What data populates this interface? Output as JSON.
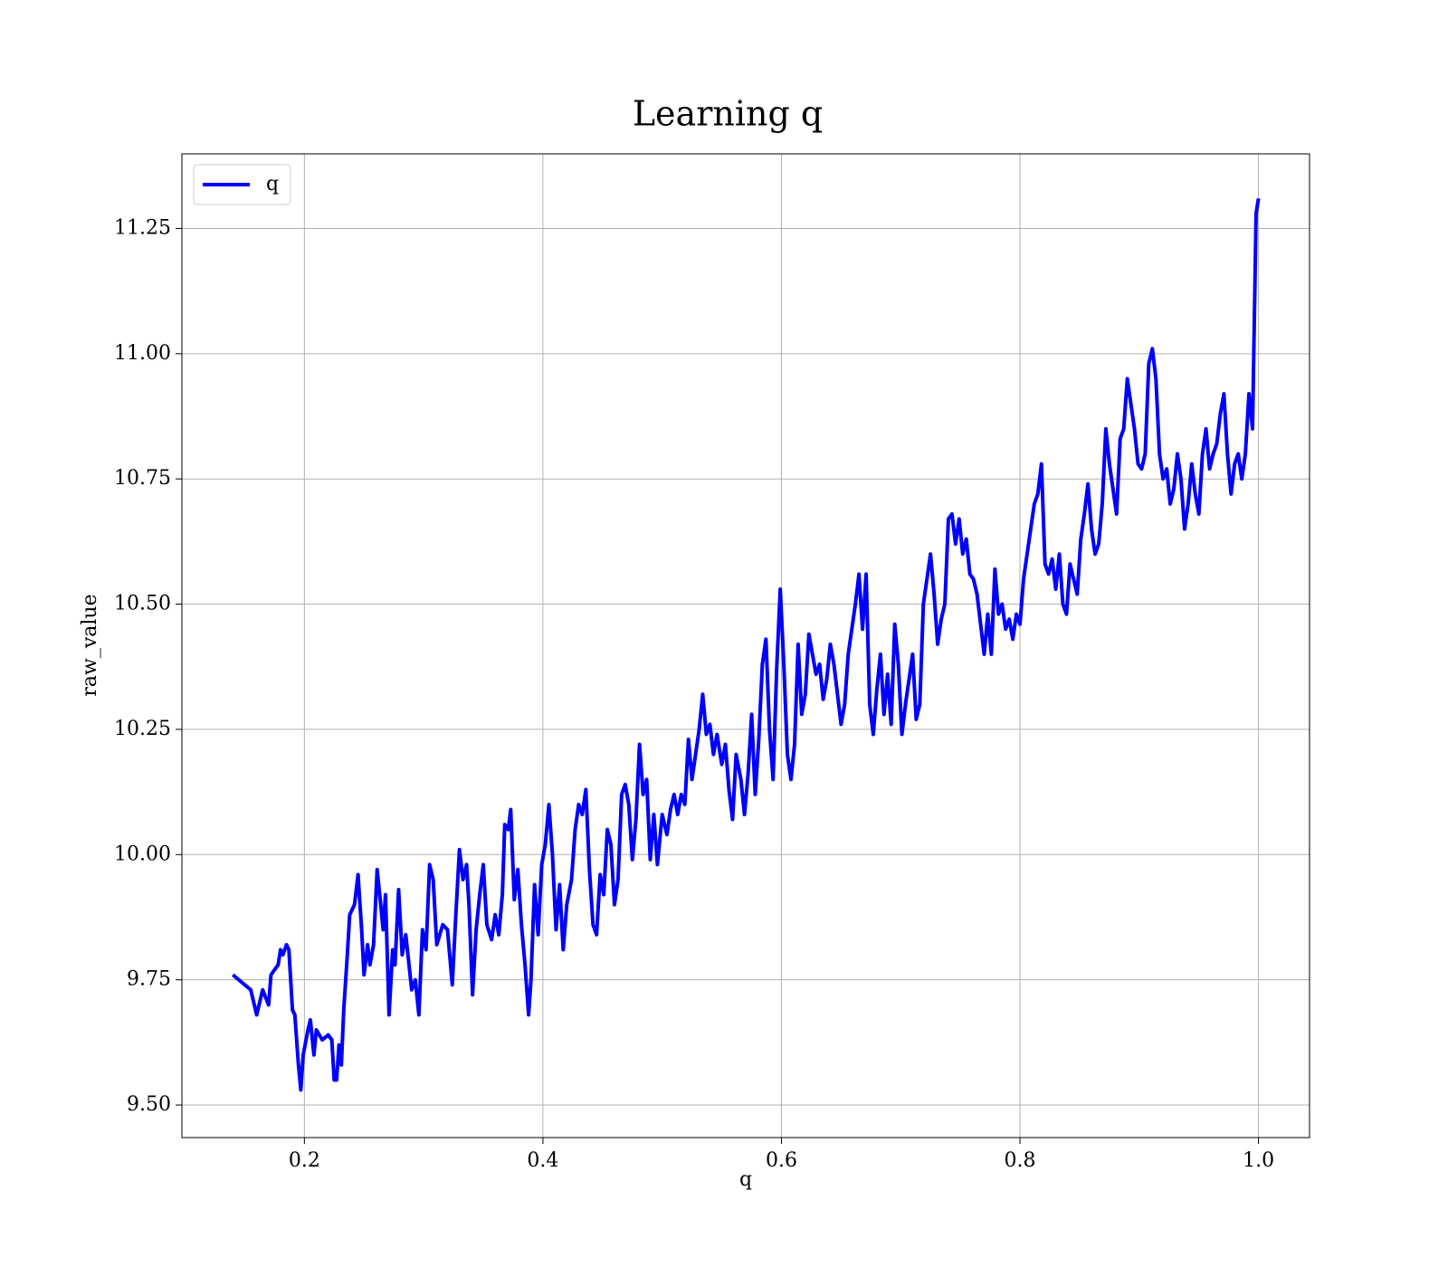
{
  "chart_data": {
    "type": "line",
    "title": "Learning q",
    "xlabel": "q",
    "ylabel": "raw_value",
    "legend": "upper left",
    "grid": true,
    "xlim": [
      0.0973,
      1.0428
    ],
    "ylim": [
      9.435,
      11.399
    ],
    "xticks": [
      0.2,
      0.4,
      0.6,
      0.8,
      {
        "value": 1,
        "label": "1.0"
      }
    ],
    "yticks": [
      {
        "value": 9.5,
        "label": "9.50"
      },
      9.75,
      {
        "value": 10,
        "label": "10.00"
      },
      10.25,
      {
        "value": 10.5,
        "label": "10.50"
      },
      10.75,
      {
        "value": 11,
        "label": "11.00"
      },
      11.25
    ],
    "x": [
      0.14,
      0.155,
      0.16,
      0.165,
      0.17,
      0.172,
      0.178,
      0.18,
      0.182,
      0.185,
      0.187,
      0.19,
      0.192,
      0.195,
      0.197,
      0.199,
      0.203,
      0.205,
      0.208,
      0.21,
      0.215,
      0.22,
      0.223,
      0.225,
      0.227,
      0.229,
      0.231,
      0.233,
      0.236,
      0.238,
      0.242,
      0.245,
      0.248,
      0.25,
      0.253,
      0.255,
      0.258,
      0.261,
      0.264,
      0.266,
      0.268,
      0.271,
      0.274,
      0.276,
      0.279,
      0.282,
      0.285,
      0.29,
      0.293,
      0.296,
      0.299,
      0.302,
      0.305,
      0.308,
      0.311,
      0.316,
      0.32,
      0.324,
      0.327,
      0.33,
      0.333,
      0.336,
      0.338,
      0.341,
      0.344,
      0.347,
      0.35,
      0.353,
      0.357,
      0.36,
      0.363,
      0.366,
      0.368,
      0.371,
      0.373,
      0.376,
      0.379,
      0.382,
      0.385,
      0.388,
      0.39,
      0.393,
      0.396,
      0.399,
      0.402,
      0.405,
      0.408,
      0.411,
      0.414,
      0.417,
      0.42,
      0.424,
      0.427,
      0.43,
      0.433,
      0.436,
      0.439,
      0.442,
      0.445,
      0.448,
      0.451,
      0.454,
      0.457,
      0.46,
      0.463,
      0.466,
      0.469,
      0.472,
      0.475,
      0.478,
      0.481,
      0.484,
      0.487,
      0.49,
      0.493,
      0.496,
      0.5,
      0.504,
      0.507,
      0.51,
      0.513,
      0.516,
      0.519,
      0.522,
      0.525,
      0.528,
      0.531,
      0.534,
      0.537,
      0.54,
      0.543,
      0.546,
      0.55,
      0.553,
      0.556,
      0.559,
      0.562,
      0.566,
      0.569,
      0.572,
      0.575,
      0.578,
      0.581,
      0.584,
      0.587,
      0.59,
      0.593,
      0.596,
      0.599,
      0.602,
      0.605,
      0.608,
      0.611,
      0.614,
      0.617,
      0.62,
      0.623,
      0.626,
      0.629,
      0.632,
      0.635,
      0.638,
      0.641,
      0.644,
      0.647,
      0.65,
      0.653,
      0.656,
      0.659,
      0.662,
      0.665,
      0.668,
      0.671,
      0.674,
      0.677,
      0.68,
      0.683,
      0.686,
      0.689,
      0.692,
      0.695,
      0.698,
      0.701,
      0.704,
      0.707,
      0.71,
      0.713,
      0.716,
      0.719,
      0.722,
      0.725,
      0.728,
      0.731,
      0.734,
      0.737,
      0.74,
      0.743,
      0.746,
      0.749,
      0.752,
      0.755,
      0.758,
      0.761,
      0.764,
      0.767,
      0.77,
      0.773,
      0.776,
      0.779,
      0.782,
      0.785,
      0.788,
      0.791,
      0.794,
      0.797,
      0.8,
      0.803,
      0.806,
      0.809,
      0.812,
      0.815,
      0.818,
      0.821,
      0.824,
      0.827,
      0.83,
      0.833,
      0.836,
      0.839,
      0.842,
      0.845,
      0.848,
      0.851,
      0.854,
      0.857,
      0.86,
      0.863,
      0.866,
      0.869,
      0.872,
      0.875,
      0.878,
      0.881,
      0.884,
      0.887,
      0.89,
      0.893,
      0.896,
      0.899,
      0.902,
      0.905,
      0.908,
      0.911,
      0.914,
      0.917,
      0.92,
      0.923,
      0.926,
      0.929,
      0.932,
      0.935,
      0.938,
      0.941,
      0.944,
      0.947,
      0.95,
      0.953,
      0.956,
      0.959,
      0.962,
      0.965,
      0.968,
      0.971,
      0.974,
      0.977,
      0.98,
      0.983,
      0.986,
      0.989,
      0.992,
      0.995,
      0.998,
      1.0
    ],
    "series": [
      {
        "name": "q",
        "color": "#0000ff",
        "values": [
          9.76,
          9.73,
          9.68,
          9.73,
          9.7,
          9.76,
          9.78,
          9.81,
          9.8,
          9.82,
          9.81,
          9.69,
          9.68,
          9.58,
          9.53,
          9.6,
          9.65,
          9.67,
          9.6,
          9.65,
          9.63,
          9.64,
          9.63,
          9.55,
          9.55,
          9.62,
          9.58,
          9.69,
          9.8,
          9.88,
          9.9,
          9.96,
          9.85,
          9.76,
          9.82,
          9.78,
          9.82,
          9.97,
          9.9,
          9.85,
          9.92,
          9.68,
          9.81,
          9.78,
          9.93,
          9.8,
          9.84,
          9.73,
          9.75,
          9.68,
          9.85,
          9.81,
          9.98,
          9.95,
          9.82,
          9.86,
          9.85,
          9.74,
          9.88,
          10.01,
          9.95,
          9.98,
          9.9,
          9.72,
          9.85,
          9.92,
          9.98,
          9.86,
          9.83,
          9.88,
          9.84,
          9.92,
          10.06,
          10.05,
          10.09,
          9.91,
          9.97,
          9.86,
          9.78,
          9.68,
          9.75,
          9.94,
          9.84,
          9.98,
          10.02,
          10.1,
          10.0,
          9.85,
          9.94,
          9.81,
          9.9,
          9.95,
          10.05,
          10.1,
          10.08,
          10.13,
          9.97,
          9.86,
          9.84,
          9.96,
          9.92,
          10.05,
          10.02,
          9.9,
          9.95,
          10.12,
          10.14,
          10.1,
          9.99,
          10.07,
          10.22,
          10.12,
          10.15,
          9.99,
          10.08,
          9.98,
          10.08,
          10.04,
          10.09,
          10.12,
          10.08,
          10.12,
          10.1,
          10.23,
          10.15,
          10.2,
          10.25,
          10.32,
          10.24,
          10.26,
          10.2,
          10.24,
          10.18,
          10.22,
          10.13,
          10.07,
          10.2,
          10.15,
          10.08,
          10.16,
          10.28,
          10.12,
          10.23,
          10.38,
          10.43,
          10.25,
          10.15,
          10.37,
          10.53,
          10.38,
          10.2,
          10.15,
          10.22,
          10.42,
          10.28,
          10.32,
          10.44,
          10.4,
          10.36,
          10.38,
          10.31,
          10.35,
          10.42,
          10.38,
          10.32,
          10.26,
          10.3,
          10.4,
          10.45,
          10.5,
          10.56,
          10.45,
          10.56,
          10.3,
          10.24,
          10.33,
          10.4,
          10.28,
          10.36,
          10.26,
          10.46,
          10.38,
          10.24,
          10.3,
          10.35,
          10.4,
          10.27,
          10.3,
          10.5,
          10.55,
          10.6,
          10.52,
          10.42,
          10.47,
          10.5,
          10.67,
          10.68,
          10.62,
          10.67,
          10.6,
          10.63,
          10.56,
          10.55,
          10.52,
          10.46,
          10.4,
          10.48,
          10.4,
          10.57,
          10.48,
          10.5,
          10.45,
          10.47,
          10.43,
          10.48,
          10.46,
          10.55,
          10.6,
          10.65,
          10.7,
          10.72,
          10.78,
          10.58,
          10.56,
          10.59,
          10.53,
          10.6,
          10.5,
          10.48,
          10.58,
          10.55,
          10.52,
          10.63,
          10.68,
          10.74,
          10.65,
          10.6,
          10.62,
          10.7,
          10.85,
          10.78,
          10.73,
          10.68,
          10.83,
          10.85,
          10.95,
          10.9,
          10.85,
          10.78,
          10.77,
          10.8,
          10.98,
          11.01,
          10.95,
          10.8,
          10.75,
          10.77,
          10.7,
          10.73,
          10.8,
          10.75,
          10.65,
          10.7,
          10.78,
          10.72,
          10.68,
          10.8,
          10.85,
          10.77,
          10.8,
          10.82,
          10.88,
          10.92,
          10.8,
          10.72,
          10.78,
          10.8,
          10.75,
          10.8,
          10.92,
          10.85,
          11.28,
          11.31
        ]
      }
    ]
  }
}
